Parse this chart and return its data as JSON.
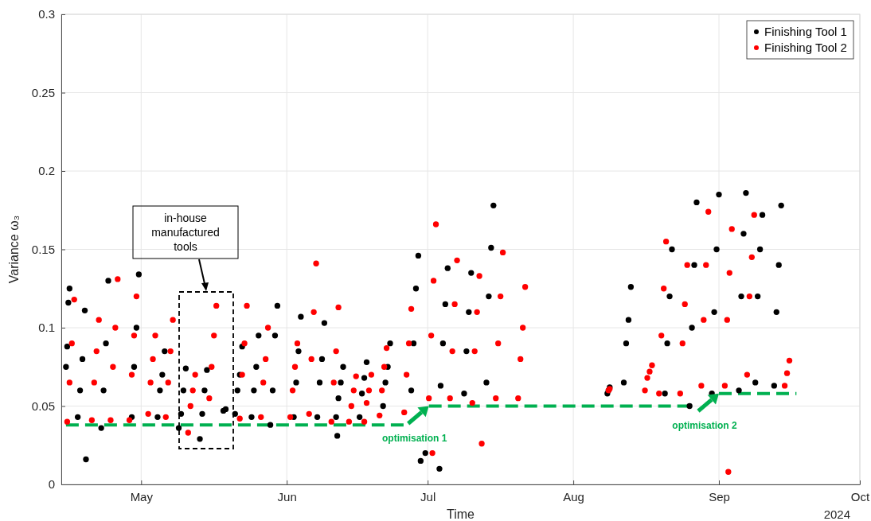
{
  "chart_data": {
    "type": "scatter",
    "xlabel": "Time",
    "ylabel": "Variance ω₃",
    "xlim": [
      "2024-04-14",
      "2024-10-01"
    ],
    "xticks": [
      {
        "value": "2024-05-01",
        "label": "May"
      },
      {
        "value": "2024-06-01",
        "label": "Jun"
      },
      {
        "value": "2024-07-01",
        "label": "Jul"
      },
      {
        "value": "2024-08-01",
        "label": "Aug"
      },
      {
        "value": "2024-09-01",
        "label": "Sep"
      },
      {
        "value": "2024-10-01",
        "label": "Oct"
      }
    ],
    "ylim": [
      0,
      0.3
    ],
    "yticks": [
      0,
      0.05,
      0.1,
      0.15,
      0.2,
      0.25,
      0.3
    ],
    "grid": true,
    "legend": "top right",
    "marker": "circle",
    "series": [
      {
        "name": "Finishing Tool 1",
        "color": "#000000",
        "x": [
          "2024-04-15T00:00",
          "2024-04-15T06:00",
          "2024-04-15T12:00",
          "2024-04-15T18:00",
          "2024-04-17T12:00",
          "2024-04-18T00:00",
          "2024-04-18T12:00",
          "2024-04-19T00:00",
          "2024-04-19T06:00",
          "2024-04-22T12:00",
          "2024-04-23T00:00",
          "2024-04-23T12:00",
          "2024-04-24T00:00",
          "2024-04-29T00:00",
          "2024-04-29T12:00",
          "2024-04-30T00:00",
          "2024-04-30T12:00",
          "2024-05-04T12:00",
          "2024-05-05T00:00",
          "2024-05-05T12:00",
          "2024-05-06T00:00",
          "2024-05-09T00:00",
          "2024-05-09T12:00",
          "2024-05-10T00:00",
          "2024-05-10T12:00",
          "2024-05-13T12:00",
          "2024-05-14T00:00",
          "2024-05-14T12:00",
          "2024-05-15T00:00",
          "2024-05-18T12:00",
          "2024-05-19T00:00",
          "2024-05-21T00:00",
          "2024-05-21T12:00",
          "2024-05-22T00:00",
          "2024-05-22T12:00",
          "2024-05-24T12:00",
          "2024-05-25T00:00",
          "2024-05-25T12:00",
          "2024-05-26T00:00",
          "2024-05-28T12:00",
          "2024-05-29T00:00",
          "2024-05-29T12:00",
          "2024-05-30T00:00",
          "2024-06-02T12:00",
          "2024-06-03T00:00",
          "2024-06-03T12:00",
          "2024-06-04T00:00",
          "2024-06-07T12:00",
          "2024-06-08T00:00",
          "2024-06-08T12:00",
          "2024-06-09T00:00",
          "2024-06-11T12:00",
          "2024-06-12T00:00",
          "2024-06-12T12:00",
          "2024-06-13T00:00",
          "2024-06-11T18:00",
          "2024-06-16T12:00",
          "2024-06-17T00:00",
          "2024-06-17T12:00",
          "2024-06-18T00:00",
          "2024-06-21T12:00",
          "2024-06-22T00:00",
          "2024-06-22T12:00",
          "2024-06-23T00:00",
          "2024-06-27T12:00",
          "2024-06-28T00:00",
          "2024-06-28T12:00",
          "2024-06-29T00:00",
          "2024-06-29T12:00",
          "2024-06-30T12:00",
          "2024-07-03T12:00",
          "2024-07-03T18:00",
          "2024-07-04T06:00",
          "2024-07-04T18:00",
          "2024-07-05T06:00",
          "2024-07-08T18:00",
          "2024-07-09T06:00",
          "2024-07-09T18:00",
          "2024-07-10T06:00",
          "2024-07-13T12:00",
          "2024-07-14T00:00",
          "2024-07-14T12:00",
          "2024-07-15T00:00",
          "2024-08-08T06:00",
          "2024-08-08T12:00",
          "2024-08-08T18:00",
          "2024-08-11T18:00",
          "2024-08-12T06:00",
          "2024-08-12T18:00",
          "2024-08-13T06:00",
          "2024-08-20T12:00",
          "2024-08-21T00:00",
          "2024-08-21T12:00",
          "2024-08-22T00:00",
          "2024-08-25T18:00",
          "2024-08-26T06:00",
          "2024-08-26T18:00",
          "2024-08-27T06:00",
          "2024-08-30T12:00",
          "2024-08-31T00:00",
          "2024-08-31T12:00",
          "2024-09-01T00:00",
          "2024-09-05T06:00",
          "2024-09-05T18:00",
          "2024-09-06T06:00",
          "2024-09-06T18:00",
          "2024-09-08T18:00",
          "2024-09-09T06:00",
          "2024-09-09T18:00",
          "2024-09-10T06:00",
          "2024-09-12T18:00",
          "2024-09-13T06:00",
          "2024-09-13T18:00",
          "2024-09-14T06:00"
        ],
        "values": [
          0.075,
          0.088,
          0.116,
          0.125,
          0.043,
          0.06,
          0.08,
          0.111,
          0.016,
          0.036,
          0.06,
          0.09,
          0.13,
          0.043,
          0.075,
          0.1,
          0.134,
          0.043,
          0.06,
          0.07,
          0.085,
          0.036,
          0.045,
          0.06,
          0.074,
          0.029,
          0.045,
          0.06,
          0.073,
          0.047,
          0.048,
          0.045,
          0.06,
          0.07,
          0.088,
          0.043,
          0.06,
          0.075,
          0.095,
          0.038,
          0.06,
          0.095,
          0.114,
          0.043,
          0.065,
          0.085,
          0.107,
          0.043,
          0.065,
          0.08,
          0.103,
          0.043,
          0.055,
          0.065,
          0.075,
          0.031,
          0.043,
          0.058,
          0.068,
          0.078,
          0.05,
          0.065,
          0.075,
          0.09,
          0.06,
          0.09,
          0.125,
          0.146,
          0.015,
          0.02,
          0.01,
          0.063,
          0.09,
          0.115,
          0.138,
          0.058,
          0.085,
          0.11,
          0.135,
          0.065,
          0.12,
          0.151,
          0.178,
          0.058,
          0.06,
          0.062,
          0.065,
          0.09,
          0.105,
          0.126,
          0.058,
          0.09,
          0.12,
          0.15,
          0.05,
          0.1,
          0.14,
          0.18,
          0.058,
          0.11,
          0.15,
          0.185,
          0.06,
          0.12,
          0.16,
          0.186,
          0.065,
          0.12,
          0.15,
          0.172,
          0.063,
          0.11,
          0.14,
          0.178
        ]
      },
      {
        "name": "Finishing Tool 2",
        "color": "#ff0000",
        "x": [
          "2024-04-15T06:00",
          "2024-04-15T18:00",
          "2024-04-16T06:00",
          "2024-04-16T18:00",
          "2024-04-20T12:00",
          "2024-04-21T00:00",
          "2024-04-21T12:00",
          "2024-04-22T00:00",
          "2024-04-24T12:00",
          "2024-04-25T00:00",
          "2024-04-25T12:00",
          "2024-04-26T00:00",
          "2024-04-28T12:00",
          "2024-04-29T00:00",
          "2024-04-29T12:00",
          "2024-04-30T00:00",
          "2024-05-02T12:00",
          "2024-05-03T00:00",
          "2024-05-03T12:00",
          "2024-05-04T00:00",
          "2024-05-06T06:00",
          "2024-05-06T18:00",
          "2024-05-07T06:00",
          "2024-05-07T18:00",
          "2024-05-11T00:00",
          "2024-05-11T12:00",
          "2024-05-12T00:00",
          "2024-05-12T12:00",
          "2024-05-15T12:00",
          "2024-05-16T00:00",
          "2024-05-16T12:00",
          "2024-05-17T00:00",
          "2024-05-22T00:00",
          "2024-05-22T12:00",
          "2024-05-23T00:00",
          "2024-05-23T12:00",
          "2024-05-26T12:00",
          "2024-05-27T00:00",
          "2024-05-27T12:00",
          "2024-05-28T00:00",
          "2024-06-01T18:00",
          "2024-06-02T06:00",
          "2024-06-02T18:00",
          "2024-06-03T06:00",
          "2024-06-05T18:00",
          "2024-06-06T06:00",
          "2024-06-06T18:00",
          "2024-06-07T06:00",
          "2024-06-10T12:00",
          "2024-06-11T00:00",
          "2024-06-11T12:00",
          "2024-06-12T00:00",
          "2024-06-14T06:00",
          "2024-06-14T18:00",
          "2024-06-15T06:00",
          "2024-06-15T18:00",
          "2024-06-17T12:00",
          "2024-06-18T00:00",
          "2024-06-18T12:00",
          "2024-06-19T00:00",
          "2024-06-20T18:00",
          "2024-06-21T06:00",
          "2024-06-21T18:00",
          "2024-06-22T06:00",
          "2024-06-26T00:00",
          "2024-06-26T12:00",
          "2024-06-27T00:00",
          "2024-06-27T12:00",
          "2024-07-01T06:00",
          "2024-07-01T18:00",
          "2024-07-02T06:00",
          "2024-07-02T18:00",
          "2024-07-02T00:00",
          "2024-07-05T18:00",
          "2024-07-06T06:00",
          "2024-07-06T18:00",
          "2024-07-07T06:00",
          "2024-07-10T12:00",
          "2024-07-11T00:00",
          "2024-07-11T12:00",
          "2024-07-12T00:00",
          "2024-07-12T12:00",
          "2024-07-15T12:00",
          "2024-07-16T00:00",
          "2024-07-16T12:00",
          "2024-07-17T00:00",
          "2024-07-20T06:00",
          "2024-07-20T18:00",
          "2024-07-21T06:00",
          "2024-07-21T18:00",
          "2024-08-08T12:00",
          "2024-08-08T18:00",
          "2024-08-16T06:00",
          "2024-08-16T18:00",
          "2024-08-17T06:00",
          "2024-08-17T18:00",
          "2024-08-19T06:00",
          "2024-08-19T18:00",
          "2024-08-20T06:00",
          "2024-08-20T18:00",
          "2024-08-23T18:00",
          "2024-08-24T06:00",
          "2024-08-24T18:00",
          "2024-08-25T06:00",
          "2024-08-28T06:00",
          "2024-08-28T18:00",
          "2024-08-29T06:00",
          "2024-08-29T18:00",
          "2024-09-02T06:00",
          "2024-09-02T18:00",
          "2024-09-03T06:00",
          "2024-09-03T18:00",
          "2024-09-03T00:00",
          "2024-09-07T00:00",
          "2024-09-07T12:00",
          "2024-09-08T00:00",
          "2024-09-08T12:00",
          "2024-09-15T00:00",
          "2024-09-15T12:00",
          "2024-09-16T00:00"
        ],
        "values": [
          0.04,
          0.065,
          0.09,
          0.118,
          0.041,
          0.065,
          0.085,
          0.105,
          0.041,
          0.075,
          0.1,
          0.131,
          0.041,
          0.07,
          0.095,
          0.12,
          0.045,
          0.065,
          0.08,
          0.095,
          0.043,
          0.065,
          0.085,
          0.105,
          0.033,
          0.05,
          0.06,
          0.07,
          0.055,
          0.075,
          0.095,
          0.114,
          0.042,
          0.07,
          0.09,
          0.114,
          0.043,
          0.065,
          0.08,
          0.1,
          0.043,
          0.06,
          0.075,
          0.09,
          0.045,
          0.08,
          0.11,
          0.141,
          0.04,
          0.065,
          0.085,
          0.113,
          0.04,
          0.05,
          0.06,
          0.069,
          0.04,
          0.052,
          0.06,
          0.07,
          0.044,
          0.06,
          0.075,
          0.087,
          0.046,
          0.07,
          0.09,
          0.112,
          0.055,
          0.095,
          0.13,
          0.166,
          0.02,
          0.055,
          0.085,
          0.115,
          0.143,
          0.052,
          0.085,
          0.11,
          0.133,
          0.026,
          0.055,
          0.09,
          0.12,
          0.148,
          0.055,
          0.08,
          0.1,
          0.126,
          0.06,
          0.061,
          0.06,
          0.068,
          0.072,
          0.076,
          0.058,
          0.095,
          0.125,
          0.155,
          0.058,
          0.09,
          0.115,
          0.14,
          0.063,
          0.105,
          0.14,
          0.174,
          0.063,
          0.105,
          0.135,
          0.163,
          0.008,
          0.07,
          0.12,
          0.145,
          0.172,
          0.063,
          0.071,
          0.079
        ]
      },
      {
        "type": "line",
        "color": "#00b050",
        "line_style": "dashed",
        "marker": "none",
        "x": [
          "2024-04-15T00:00",
          "2024-06-27T00:00"
        ],
        "values": [
          0.038,
          0.038
        ]
      },
      {
        "type": "line",
        "color": "#00b050",
        "line_style": "dashed",
        "marker": "none",
        "x": [
          "2024-07-01T06:00",
          "2024-08-25T18:00"
        ],
        "values": [
          0.05,
          0.05
        ]
      },
      {
        "type": "line",
        "color": "#00b050",
        "line_style": "dashed",
        "marker": "none",
        "x": [
          "2024-09-01T00:00",
          "2024-09-17T12:00"
        ],
        "values": [
          0.058,
          0.058
        ]
      }
    ],
    "annotations": [
      "2024",
      "in-house manufactured tools",
      {
        "text": "optimisation 1",
        "x": "2024-07-01T06:00",
        "y": 0.05
      },
      {
        "text": "optimisation 2",
        "x": "2024-09-01T00:00",
        "y": 0.058
      }
    ]
  }
}
